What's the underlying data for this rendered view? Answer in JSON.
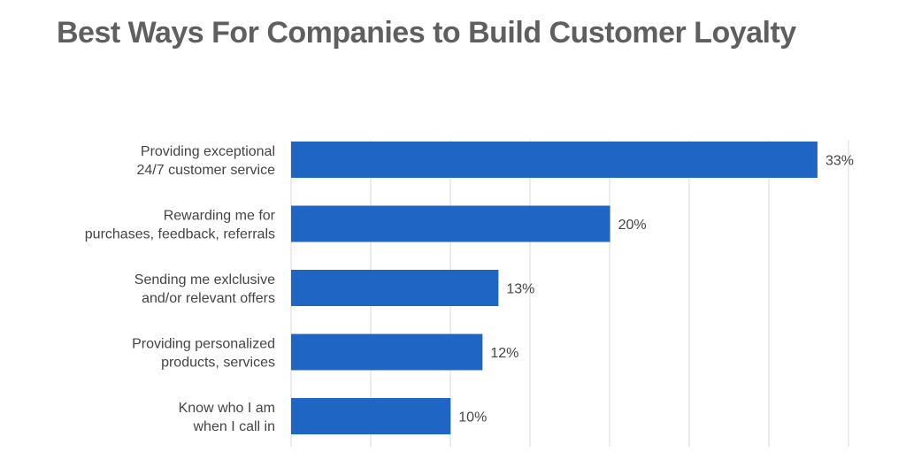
{
  "chart_data": {
    "type": "bar",
    "orientation": "horizontal",
    "title": "Best Ways For Companies to Build Customer Loyalty",
    "categories": [
      [
        "Providing exceptional",
        "24/7 customer service"
      ],
      [
        "Rewarding me for",
        "purchases, feedback, referrals"
      ],
      [
        "Sending me exlclusive",
        "and/or relevant offers"
      ],
      [
        "Providing personalized",
        "products, services"
      ],
      [
        "Know who I am",
        "when I call in"
      ]
    ],
    "values": [
      33,
      20,
      13,
      12,
      10
    ],
    "value_labels": [
      "33%",
      "20%",
      "13%",
      "12%",
      "10%"
    ],
    "xlim": [
      0,
      35
    ],
    "grid": true,
    "bar_color": "#1f65c4",
    "xlabel": "",
    "ylabel": ""
  }
}
